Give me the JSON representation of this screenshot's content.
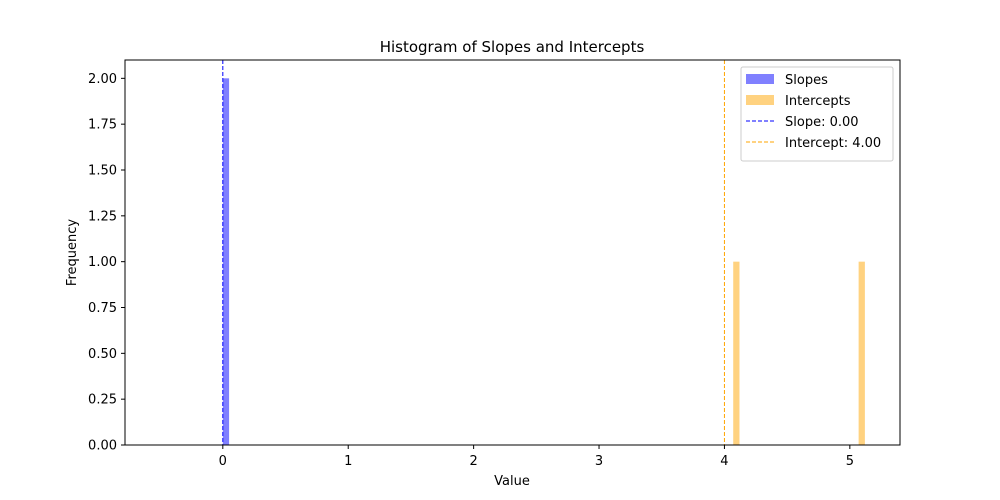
{
  "chart_data": {
    "type": "bar",
    "title": "Histogram of Slopes and Intercepts",
    "xlabel": "Value",
    "ylabel": "Frequency",
    "xlim": [
      -0.78,
      5.4
    ],
    "ylim": [
      0,
      2.1
    ],
    "xticks": [
      0,
      1,
      2,
      3,
      4,
      5
    ],
    "xtick_labels": [
      "0",
      "1",
      "2",
      "3",
      "4",
      "5"
    ],
    "yticks": [
      0,
      0.25,
      0.5,
      0.75,
      1.0,
      1.25,
      1.5,
      1.75,
      2.0
    ],
    "ytick_labels": [
      "0.00",
      "0.25",
      "0.50",
      "0.75",
      "1.00",
      "1.25",
      "1.50",
      "1.75",
      "2.00"
    ],
    "grid": false,
    "legend_position": "top-right",
    "series": [
      {
        "name": "Slopes",
        "color": "#8080ff",
        "bins": [
          {
            "x0": 0.0,
            "x1": 0.05,
            "count": 2
          }
        ]
      },
      {
        "name": "Intercepts",
        "color": "#ffd280",
        "bins": [
          {
            "x0": 4.07,
            "x1": 4.12,
            "count": 1
          },
          {
            "x0": 5.07,
            "x1": 5.12,
            "count": 1
          }
        ]
      }
    ],
    "reference_lines": [
      {
        "name": "Slope: 0.00",
        "value": 0.0,
        "color": "#0000ff",
        "style": "dashed"
      },
      {
        "name": "Intercept: 4.00",
        "value": 4.0,
        "color": "#ffa500",
        "style": "dashed"
      }
    ]
  }
}
